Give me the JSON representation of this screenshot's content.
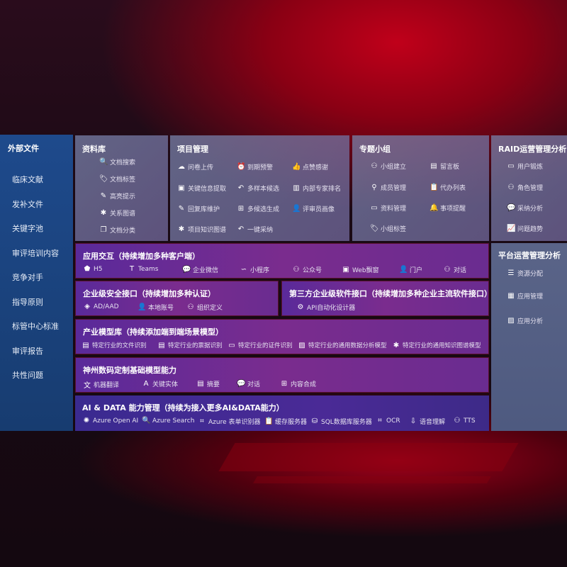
{
  "left": {
    "title": "外部文件",
    "items": [
      "临床文献",
      "发补文件",
      "关键字池",
      "审评培训内容",
      "竞争对手",
      "指导原则",
      "标管中心标准",
      "审评报告",
      "共性问题"
    ]
  },
  "panels": {
    "library": {
      "title": "资料库",
      "items": [
        {
          "label": "文档搜索",
          "icon": "doc-search"
        },
        {
          "label": "文档标签",
          "icon": "tag"
        },
        {
          "label": "高亮提示",
          "icon": "pen"
        },
        {
          "label": "关系图谱",
          "icon": "graph"
        },
        {
          "label": "文档分类",
          "icon": "doc-copy"
        }
      ]
    },
    "project": {
      "title": "项目管理",
      "items": [
        {
          "label": "问卷上传",
          "icon": "cloud-upload"
        },
        {
          "label": "到期预警",
          "icon": "alarm"
        },
        {
          "label": "点赞感谢",
          "icon": "thumbs-up"
        },
        {
          "label": "关键信息提取",
          "icon": "window"
        },
        {
          "label": "多样本候选",
          "icon": "reply"
        },
        {
          "label": "内部专家排名",
          "icon": "ranking"
        },
        {
          "label": "回复库维护",
          "icon": "pen"
        },
        {
          "label": "多候选生成",
          "icon": "puzzle"
        },
        {
          "label": "评审员画像",
          "icon": "user"
        },
        {
          "label": "项目知识图谱",
          "icon": "graph"
        },
        {
          "label": "一键采纳",
          "icon": "reply"
        }
      ]
    },
    "group": {
      "title": "专题小组",
      "items": [
        {
          "label": "小组建立",
          "icon": "users"
        },
        {
          "label": "留言板",
          "icon": "bbs"
        },
        {
          "label": "成员管理",
          "icon": "user-add"
        },
        {
          "label": "代办列表",
          "icon": "clipboard"
        },
        {
          "label": "资料管理",
          "icon": "folder"
        },
        {
          "label": "事项提醒",
          "icon": "bell"
        },
        {
          "label": "小组标签",
          "icon": "tag"
        }
      ]
    },
    "raid": {
      "title": "RAID运营管理分析",
      "items": [
        {
          "label": "用户锻炼",
          "icon": "id-card"
        },
        {
          "label": "角色管理",
          "icon": "users"
        },
        {
          "label": "采纳分析",
          "icon": "qa"
        },
        {
          "label": "问题趋势",
          "icon": "trend"
        }
      ]
    },
    "app": {
      "title": "应用交互（持续增加多种客户端）",
      "items": [
        {
          "label": "H5",
          "icon": "html5"
        },
        {
          "label": "Teams",
          "icon": "teams"
        },
        {
          "label": "企业微信",
          "icon": "wechat"
        },
        {
          "label": "小程序",
          "icon": "miniprogram"
        },
        {
          "label": "公众号",
          "icon": "users"
        },
        {
          "label": "Web飘窗",
          "icon": "window"
        },
        {
          "label": "门户",
          "icon": "user-desk"
        },
        {
          "label": "对话",
          "icon": "chat-users"
        }
      ]
    },
    "security": {
      "title": "企业级安全接口（持续增加多种认证）",
      "items": [
        {
          "label": "AD/AAD",
          "icon": "diamond"
        },
        {
          "label": "本地账号",
          "icon": "user-lock"
        },
        {
          "label": "组织定义",
          "icon": "org"
        }
      ]
    },
    "thirdparty": {
      "title": "第三方企业级软件接口（持续增加多种企业主流软件接口）",
      "items": [
        {
          "label": "API自动化设计器",
          "icon": "gear"
        }
      ]
    },
    "industry": {
      "title": "产业模型库（持续添加端到端场景模型）",
      "items": [
        {
          "label": "特定行业的文件识别",
          "icon": "doc"
        },
        {
          "label": "特定行业的票据识别",
          "icon": "receipt"
        },
        {
          "label": "特定行业的证件识别",
          "icon": "id-card"
        },
        {
          "label": "特定行业的通用数据分析模型",
          "icon": "image"
        },
        {
          "label": "特定行业的通用知识图谱模型",
          "icon": "graph"
        }
      ]
    },
    "base": {
      "title": "神州数码定制基础模型能力",
      "items": [
        {
          "label": "机器翻译",
          "icon": "translate"
        },
        {
          "label": "关键实体",
          "icon": "shield-a"
        },
        {
          "label": "摘要",
          "icon": "doc"
        },
        {
          "label": "对话",
          "icon": "chat"
        },
        {
          "label": "内容合成",
          "icon": "puzzle"
        }
      ]
    },
    "ai": {
      "title": "AI & DATA 能力管理（持续为接入更多AI&DATA能力）",
      "items": [
        {
          "label": "Azure Open AI",
          "icon": "openai"
        },
        {
          "label": "Azure Search",
          "icon": "doc-search"
        },
        {
          "label": "Azure 表单识别器",
          "icon": "scan"
        },
        {
          "label": "缓存服务器",
          "icon": "clipboard"
        },
        {
          "label": "SQL数据库服务器",
          "icon": "database"
        },
        {
          "label": "OCR",
          "icon": "ocr"
        },
        {
          "label": "语音理解",
          "icon": "voice"
        },
        {
          "label": "TTS",
          "icon": "tts"
        }
      ]
    },
    "platform": {
      "title": "平台运营管理分析",
      "items": [
        {
          "label": "资源分配",
          "icon": "list"
        },
        {
          "label": "应用管理",
          "icon": "apps"
        },
        {
          "label": "应用分析",
          "icon": "chart"
        }
      ]
    }
  },
  "colors": {
    "left": "#1e4a8c",
    "purple": "#7a2c8e",
    "ai": "#3a2a90",
    "platform": "#5a6488",
    "accent": "#c0001a"
  }
}
